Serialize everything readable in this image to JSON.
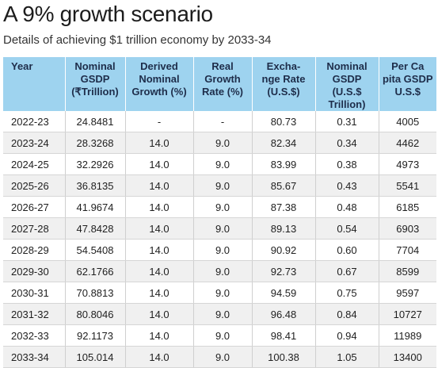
{
  "title": "A 9% growth scenario",
  "subtitle": "Details of achieving $1 trillion economy by 2033-34",
  "colors": {
    "header_bg": "#9ed3ef",
    "header_text": "#1e2d4a",
    "row_alt": "#f0f0f0"
  },
  "table": {
    "columns": [
      [
        "Year"
      ],
      [
        "Nominal",
        "GSDP",
        "(₹Trillion)"
      ],
      [
        "Derived",
        "Nominal",
        "Growth (%)"
      ],
      [
        "Real",
        "Growth",
        "Rate (%)"
      ],
      [
        "Excha-",
        "nge Rate",
        "(U.S.$)"
      ],
      [
        "Nominal",
        "GSDP (U.S.$",
        "Trillion)"
      ],
      [
        "Per Ca",
        "pita GSDP",
        "U.S.$"
      ]
    ],
    "rows": [
      [
        "2022-23",
        "24.8481",
        "-",
        "-",
        "80.73",
        "0.31",
        "4005"
      ],
      [
        "2023-24",
        "28.3268",
        "14.0",
        "9.0",
        "82.34",
        "0.34",
        "4462"
      ],
      [
        "2024-25",
        "32.2926",
        "14.0",
        "9.0",
        "83.99",
        "0.38",
        "4973"
      ],
      [
        "2025-26",
        "36.8135",
        "14.0",
        "9.0",
        "85.67",
        "0.43",
        "5541"
      ],
      [
        "2026-27",
        "41.9674",
        "14.0",
        "9.0",
        "87.38",
        "0.48",
        "6185"
      ],
      [
        "2027-28",
        "47.8428",
        "14.0",
        "9.0",
        "89.13",
        "0.54",
        "6903"
      ],
      [
        "2028-29",
        "54.5408",
        "14.0",
        "9.0",
        "90.92",
        "0.60",
        "7704"
      ],
      [
        "2029-30",
        "62.1766",
        "14.0",
        "9.0",
        "92.73",
        "0.67",
        "8599"
      ],
      [
        "2030-31",
        "70.8813",
        "14.0",
        "9.0",
        "94.59",
        "0.75",
        "9597"
      ],
      [
        "2031-32",
        "80.8046",
        "14.0",
        "9.0",
        "96.48",
        "0.84",
        "10727"
      ],
      [
        "2032-33",
        "92.1173",
        "14.0",
        "9.0",
        "98.41",
        "0.94",
        "11989"
      ],
      [
        "2033-34",
        "105.014",
        "14.0",
        "9.0",
        "100.38",
        "1.05",
        "13400"
      ]
    ]
  }
}
